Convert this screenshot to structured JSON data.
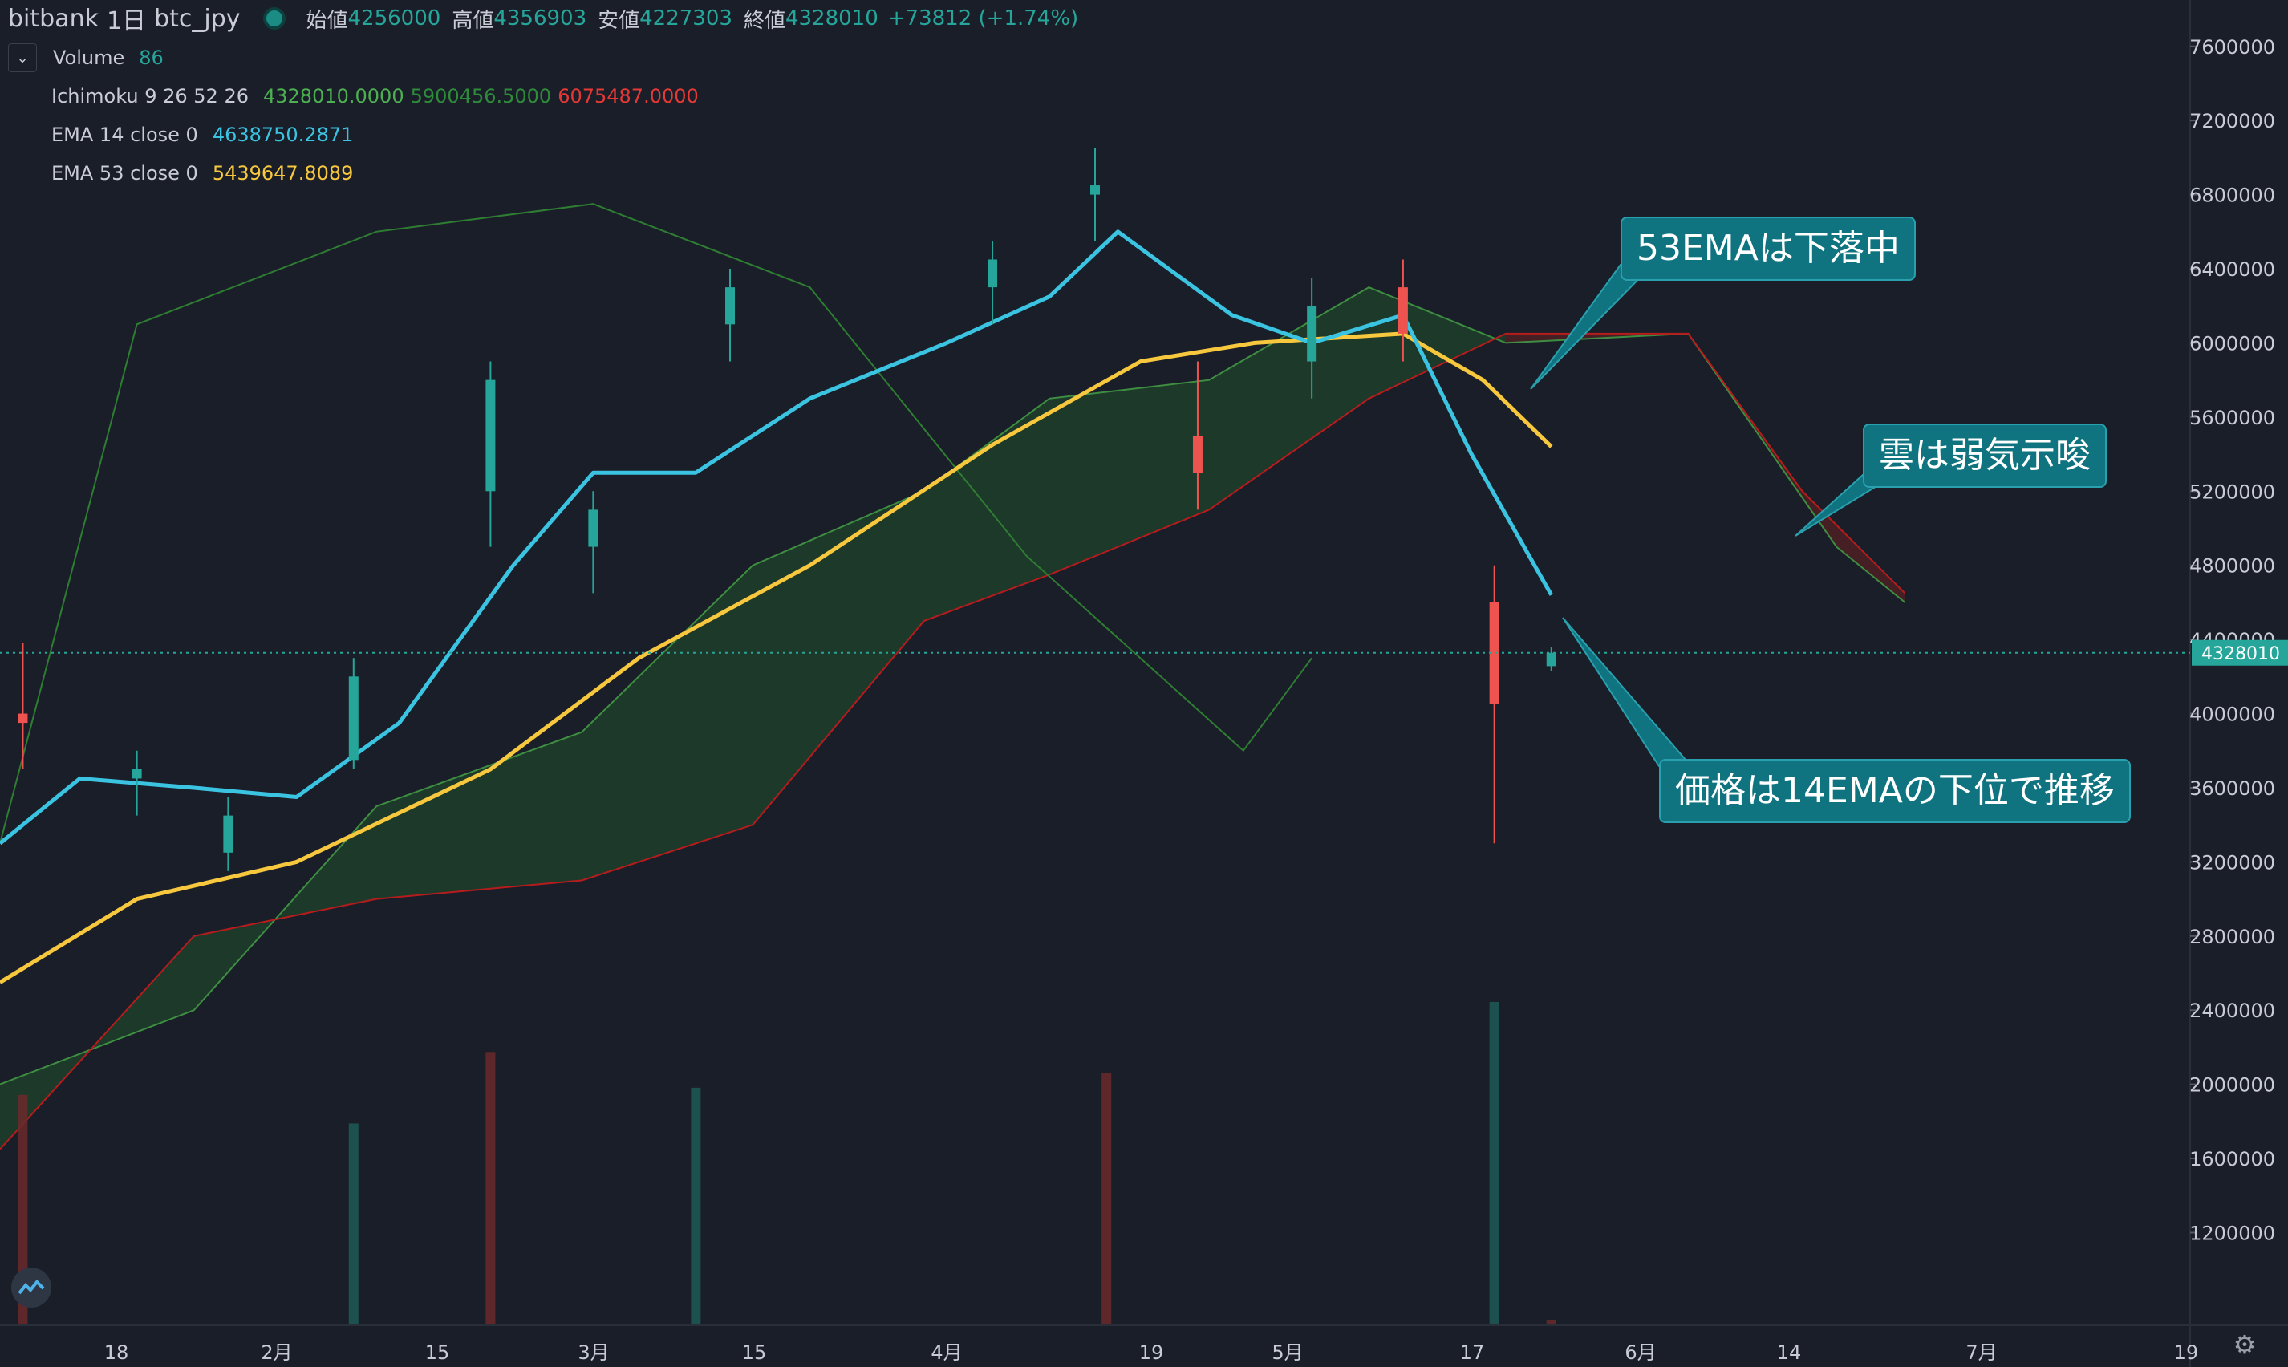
{
  "header": {
    "exchange": "bitbank",
    "interval": "1日",
    "symbol": "btc_jpy",
    "open_label": "始値",
    "open_value": "4256000",
    "high_label": "高値",
    "high_value": "4356903",
    "low_label": "安値",
    "low_value": "4227303",
    "close_label": "終値",
    "close_value": "4328010",
    "change": "+73812 (+1.74%)"
  },
  "indicators": {
    "volume": {
      "name": "Volume",
      "value": "86"
    },
    "ichimoku": {
      "name": "Ichimoku 9 26 52 26",
      "v1": "4328010.0000",
      "v2": "5900456.5000",
      "v3": "6075487.0000"
    },
    "ema14": {
      "name": "EMA 14 close 0",
      "value": "4638750.2871"
    },
    "ema53": {
      "name": "EMA 53 close 0",
      "value": "5439647.8089"
    }
  },
  "annotations": {
    "ema53_falling": "53EMAは下落中",
    "cloud_bearish": "雲は弱気示唆",
    "price_below_ema14": "価格は14EMAの下位で推移"
  },
  "colors": {
    "background": "#1a1e29",
    "up": "#26a69a",
    "down": "#ef5350",
    "ema14": "#3bc4e2",
    "ema53": "#f7c73e",
    "cloud_bull": "#1f3e2a",
    "cloud_bear": "#4a1f24",
    "lagging_span": "#2e7d32",
    "callout": "#0f7380"
  },
  "chart_data": {
    "type": "candlestick",
    "price_axis": {
      "ticks": [
        1200000,
        1600000,
        2000000,
        2400000,
        2800000,
        3200000,
        3600000,
        4000000,
        4400000,
        4800000,
        5200000,
        5600000,
        6000000,
        6400000,
        6800000,
        7200000,
        7600000
      ],
      "range": [
        700000,
        7850000
      ],
      "last_price": 4328010,
      "last_price_label": "4328010"
    },
    "time_axis": {
      "ticks": [
        "18",
        "2月",
        "15",
        "3月",
        "15",
        "4月",
        "19",
        "5月",
        "17",
        "6月",
        "14",
        "7月",
        "19"
      ],
      "range_start": "2021-01-08",
      "range_end": "2021-07-19"
    },
    "series": [
      {
        "name": "btc_jpy",
        "kind": "ohlc",
        "samples": [
          {
            "date": "2021-01-10",
            "open": 4000000,
            "high": 4380000,
            "low": 3700000,
            "close": 3950000
          },
          {
            "date": "2021-01-20",
            "open": 3650000,
            "high": 3800000,
            "low": 3450000,
            "close": 3700000
          },
          {
            "date": "2021-01-28",
            "open": 3250000,
            "high": 3550000,
            "low": 3150000,
            "close": 3450000
          },
          {
            "date": "2021-02-08",
            "open": 3750000,
            "high": 4300000,
            "low": 3700000,
            "close": 4200000
          },
          {
            "date": "2021-02-20",
            "open": 5200000,
            "high": 5900000,
            "low": 4900000,
            "close": 5800000
          },
          {
            "date": "2021-03-01",
            "open": 4900000,
            "high": 5200000,
            "low": 4650000,
            "close": 5100000
          },
          {
            "date": "2021-03-13",
            "open": 6100000,
            "high": 6400000,
            "low": 5900000,
            "close": 6300000
          },
          {
            "date": "2021-04-05",
            "open": 6300000,
            "high": 6550000,
            "low": 6100000,
            "close": 6450000
          },
          {
            "date": "2021-04-14",
            "open": 6800000,
            "high": 7050000,
            "low": 6550000,
            "close": 6850000
          },
          {
            "date": "2021-04-23",
            "open": 5500000,
            "high": 5900000,
            "low": 5100000,
            "close": 5300000
          },
          {
            "date": "2021-05-03",
            "open": 5900000,
            "high": 6350000,
            "low": 5700000,
            "close": 6200000
          },
          {
            "date": "2021-05-11",
            "open": 6300000,
            "high": 6450000,
            "low": 5900000,
            "close": 6050000
          },
          {
            "date": "2021-05-19",
            "open": 4600000,
            "high": 4800000,
            "low": 3300000,
            "close": 4050000
          },
          {
            "date": "2021-05-24",
            "open": 4256000,
            "high": 4356903,
            "low": 4227303,
            "close": 4328010
          }
        ]
      },
      {
        "name": "EMA 14 close 0",
        "points": [
          [
            "2021-01-08",
            3300000
          ],
          [
            "2021-01-15",
            3650000
          ],
          [
            "2021-01-25",
            3600000
          ],
          [
            "2021-02-03",
            3550000
          ],
          [
            "2021-02-12",
            3950000
          ],
          [
            "2021-02-22",
            4800000
          ],
          [
            "2021-03-01",
            5300000
          ],
          [
            "2021-03-10",
            5300000
          ],
          [
            "2021-03-20",
            5700000
          ],
          [
            "2021-04-01",
            6000000
          ],
          [
            "2021-04-10",
            6250000
          ],
          [
            "2021-04-16",
            6600000
          ],
          [
            "2021-04-26",
            6150000
          ],
          [
            "2021-05-03",
            6000000
          ],
          [
            "2021-05-11",
            6150000
          ],
          [
            "2021-05-17",
            5400000
          ],
          [
            "2021-05-24",
            4640000
          ]
        ]
      },
      {
        "name": "EMA 53 close 0",
        "points": [
          [
            "2021-01-08",
            2550000
          ],
          [
            "2021-01-20",
            3000000
          ],
          [
            "2021-02-03",
            3200000
          ],
          [
            "2021-02-20",
            3700000
          ],
          [
            "2021-03-05",
            4300000
          ],
          [
            "2021-03-20",
            4800000
          ],
          [
            "2021-04-05",
            5450000
          ],
          [
            "2021-04-18",
            5900000
          ],
          [
            "2021-04-28",
            6000000
          ],
          [
            "2021-05-11",
            6050000
          ],
          [
            "2021-05-18",
            5800000
          ],
          [
            "2021-05-24",
            5440000
          ]
        ]
      }
    ],
    "ichimoku_cloud": {
      "span_a": [
        [
          "2021-01-08",
          2000000
        ],
        [
          "2021-01-25",
          2400000
        ],
        [
          "2021-02-10",
          3500000
        ],
        [
          "2021-02-28",
          3900000
        ],
        [
          "2021-03-15",
          4800000
        ],
        [
          "2021-03-30",
          5200000
        ],
        [
          "2021-04-10",
          5700000
        ],
        [
          "2021-04-24",
          5800000
        ],
        [
          "2021-05-08",
          6300000
        ],
        [
          "2021-05-20",
          6000000
        ],
        [
          "2021-06-05",
          6050000
        ],
        [
          "2021-06-18",
          4900000
        ],
        [
          "2021-06-24",
          4600000
        ]
      ],
      "span_b": [
        [
          "2021-01-08",
          1650000
        ],
        [
          "2021-01-25",
          2800000
        ],
        [
          "2021-02-10",
          3000000
        ],
        [
          "2021-02-28",
          3100000
        ],
        [
          "2021-03-15",
          3400000
        ],
        [
          "2021-03-30",
          4500000
        ],
        [
          "2021-04-10",
          4750000
        ],
        [
          "2021-04-24",
          5100000
        ],
        [
          "2021-05-08",
          5700000
        ],
        [
          "2021-05-20",
          6050000
        ],
        [
          "2021-06-05",
          6050000
        ],
        [
          "2021-06-15",
          5200000
        ],
        [
          "2021-06-24",
          4650000
        ]
      ],
      "lagging_span_samples": [
        [
          "2021-01-08",
          3300000
        ],
        [
          "2021-01-20",
          6100000
        ],
        [
          "2021-02-10",
          6600000
        ],
        [
          "2021-03-01",
          6750000
        ],
        [
          "2021-03-20",
          6300000
        ],
        [
          "2021-04-08",
          4850000
        ],
        [
          "2021-04-27",
          3800000
        ],
        [
          "2021-05-03",
          4300000
        ]
      ]
    },
    "volume": {
      "visible_range_max_label": "",
      "samples": [
        [
          "2021-01-10",
          1600000
        ],
        [
          "2021-02-08",
          1400000
        ],
        [
          "2021-02-20",
          1900000
        ],
        [
          "2021-03-10",
          1650000
        ],
        [
          "2021-04-15",
          1750000
        ],
        [
          "2021-05-19",
          2250000
        ],
        [
          "2021-05-24",
          86
        ]
      ]
    }
  }
}
